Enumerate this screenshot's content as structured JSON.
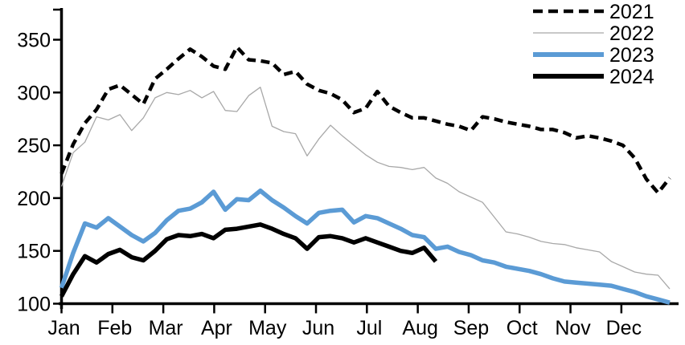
{
  "page": {
    "background": "#ffffff"
  },
  "chart_data": {
    "type": "line",
    "title": "",
    "xlabel": "",
    "ylabel": "",
    "grid": false,
    "x_axis": {
      "tick_labels": [
        "Jan",
        "Feb",
        "Mar",
        "Apr",
        "May",
        "Jun",
        "Jul",
        "Aug",
        "Sep",
        "Oct",
        "Nov",
        "Dec"
      ],
      "note": "weekly data points spanning one calendar year"
    },
    "y_axis": {
      "ticks": [
        100,
        150,
        200,
        250,
        300,
        350
      ],
      "range": [
        100,
        350
      ]
    },
    "legend": {
      "position": "top-right",
      "entries": [
        "2021",
        "2022",
        "2023",
        "2024"
      ]
    },
    "series": [
      {
        "name": "2021",
        "color": "#000000",
        "style": "dashed",
        "width": 4.5,
        "values": [
          223,
          251,
          271,
          284,
          303,
          307,
          298,
          289,
          313,
          322,
          332,
          341,
          334,
          325,
          322,
          343,
          331,
          330,
          328,
          317,
          320,
          308,
          302,
          299,
          293,
          281,
          285,
          301,
          287,
          281,
          276,
          276,
          273,
          270,
          268,
          264,
          277,
          275,
          272,
          270,
          268,
          265,
          265,
          262,
          257,
          259,
          257,
          254,
          250,
          238,
          218,
          205,
          219
        ]
      },
      {
        "name": "2022",
        "color": "#a8a8a8",
        "style": "solid",
        "width": 1.3,
        "values": [
          211,
          243,
          253,
          277,
          274,
          279,
          264,
          276,
          295,
          300,
          298,
          302,
          295,
          301,
          283,
          282,
          297,
          305,
          268,
          263,
          261,
          240,
          256,
          269,
          259,
          250,
          241,
          234,
          230,
          229,
          227,
          229,
          219,
          214,
          206,
          201,
          196,
          182,
          168,
          166,
          163,
          159,
          157,
          156,
          153,
          151,
          149,
          140,
          135,
          130,
          128,
          127,
          114
        ]
      },
      {
        "name": "2023",
        "color": "#5B9BD5",
        "style": "solid",
        "width": 5.5,
        "values": [
          115,
          148,
          176,
          172,
          181,
          173,
          165,
          159,
          167,
          179,
          188,
          190,
          196,
          206,
          189,
          199,
          198,
          207,
          198,
          191,
          183,
          176,
          186,
          188,
          189,
          177,
          183,
          181,
          176,
          171,
          165,
          163,
          152,
          154,
          149,
          146,
          141,
          139,
          135,
          133,
          131,
          128,
          124,
          121,
          120,
          119,
          118,
          117,
          114,
          111,
          107,
          104,
          101
        ]
      },
      {
        "name": "2024",
        "color": "#000000",
        "style": "solid",
        "width": 5.5,
        "values": [
          107,
          128,
          145,
          139,
          147,
          151,
          144,
          141,
          150,
          161,
          165,
          164,
          166,
          162,
          170,
          171,
          173,
          175,
          171,
          166,
          162,
          152,
          163,
          164,
          162,
          158,
          162,
          158,
          154,
          150,
          148,
          153,
          140
        ]
      }
    ]
  }
}
